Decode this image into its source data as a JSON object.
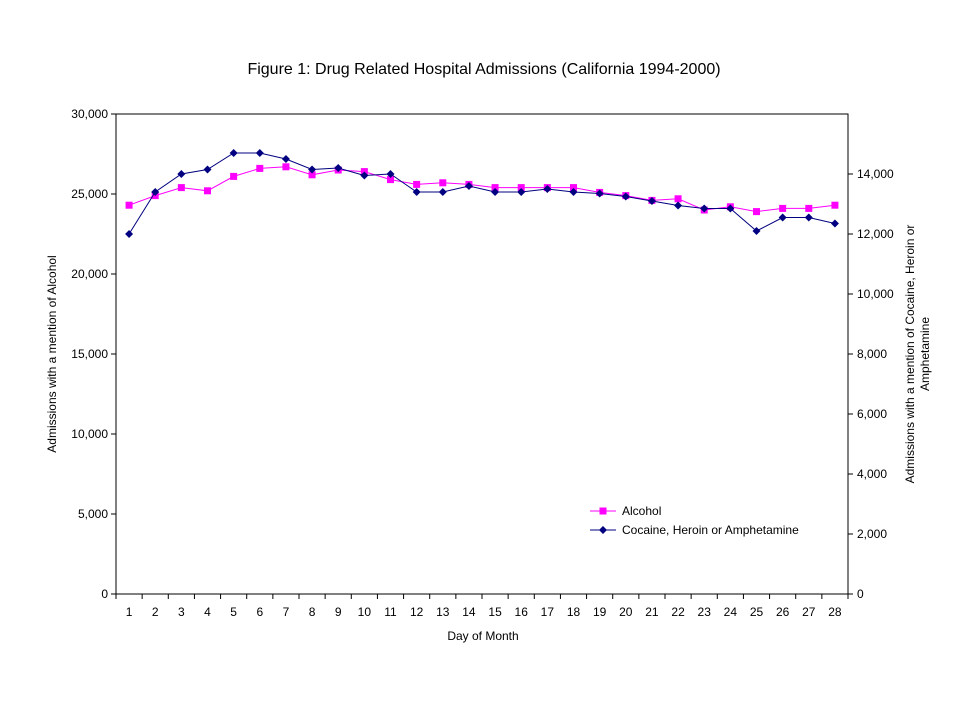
{
  "chart_data": {
    "type": "line",
    "title": "Figure 1: Drug Related Hospital Admissions (California 1994-2000)",
    "xlabel": "Day of Month",
    "ylabel_left": "Admissions with a mention of Alcohol",
    "ylabel_right_lines": [
      "Admissions with a mention of Cocaine, Heroin or",
      "Amphetamine"
    ],
    "categories": [
      1,
      2,
      3,
      4,
      5,
      6,
      7,
      8,
      9,
      10,
      11,
      12,
      13,
      14,
      15,
      16,
      17,
      18,
      19,
      20,
      21,
      22,
      23,
      24,
      25,
      26,
      27,
      28
    ],
    "y_left": {
      "range": [
        0,
        30000
      ],
      "ticks": [
        0,
        5000,
        10000,
        15000,
        20000,
        25000,
        30000
      ],
      "tick_labels": [
        "0",
        "5,000",
        "10,000",
        "15,000",
        "20,000",
        "25,000",
        "30,000"
      ]
    },
    "y_right": {
      "range": [
        0,
        16000
      ],
      "ticks": [
        0,
        2000,
        4000,
        6000,
        8000,
        10000,
        12000,
        14000
      ],
      "tick_labels": [
        "0",
        "2,000",
        "4,000",
        "6,000",
        "8,000",
        "10,000",
        "12,000",
        "14,000"
      ]
    },
    "grid": false,
    "legend_position": "bottom-right",
    "series": [
      {
        "name": "Alcohol",
        "axis": "left",
        "color": "#ff00ff",
        "marker": "square",
        "values": [
          24300,
          24900,
          25400,
          25200,
          26100,
          26600,
          26700,
          26200,
          26500,
          26400,
          25900,
          25600,
          25700,
          25600,
          25400,
          25400,
          25400,
          25400,
          25100,
          24900,
          24600,
          24700,
          24000,
          24200,
          23900,
          24100,
          24100,
          24300
        ]
      },
      {
        "name": "Cocaine, Heroin or Amphetamine",
        "axis": "right",
        "color": "#000080",
        "marker": "diamond",
        "values": [
          12000,
          13400,
          14000,
          14150,
          14700,
          14700,
          14500,
          14150,
          14200,
          13950,
          14000,
          13400,
          13400,
          13600,
          13400,
          13400,
          13500,
          13400,
          13350,
          13250,
          13100,
          12950,
          12850,
          12850,
          12100,
          12550,
          12550,
          12350
        ]
      }
    ]
  }
}
